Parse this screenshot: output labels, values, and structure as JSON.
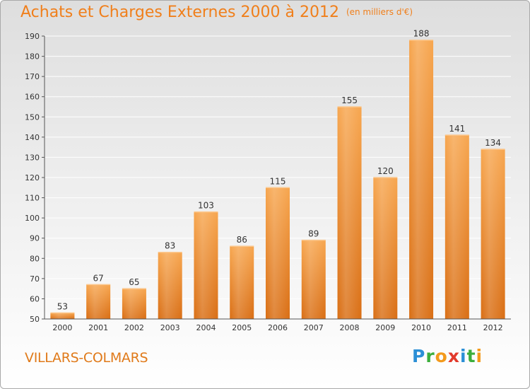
{
  "header": {
    "title": "Achats et Charges Externes 2000 à 2012",
    "unit": "(en milliers d'€)"
  },
  "footer": {
    "city": "VILLARS-COLMARS",
    "logo_letters": [
      {
        "char": "P",
        "color": "#2b8fd6"
      },
      {
        "char": "r",
        "color": "#3cae3c"
      },
      {
        "char": "o",
        "color": "#f39a1c"
      },
      {
        "char": "x",
        "color": "#e23a2c"
      },
      {
        "char": "i",
        "color": "#2b8fd6"
      },
      {
        "char": "t",
        "color": "#3cae3c"
      },
      {
        "char": "i",
        "color": "#f39a1c"
      }
    ]
  },
  "colors": {
    "title": "#f07f1b",
    "bar_top": "#f7a64f",
    "bar_bottom": "#d96e14",
    "grid": "#ffffff",
    "axis_text": "#333333"
  },
  "chart_data": {
    "type": "bar",
    "title": "Achats et Charges Externes 2000 à 2012",
    "subtitle": "(en milliers d'€)",
    "categories": [
      "2000",
      "2001",
      "2002",
      "2003",
      "2004",
      "2005",
      "2006",
      "2007",
      "2008",
      "2009",
      "2010",
      "2011",
      "2012"
    ],
    "values": [
      53,
      67,
      65,
      83,
      103,
      86,
      115,
      89,
      155,
      120,
      188,
      141,
      134
    ],
    "ylim": [
      50,
      190
    ],
    "yticks": [
      50,
      60,
      70,
      80,
      90,
      100,
      110,
      120,
      130,
      140,
      150,
      160,
      170,
      180,
      190
    ],
    "grid": true,
    "data_labels": true
  }
}
